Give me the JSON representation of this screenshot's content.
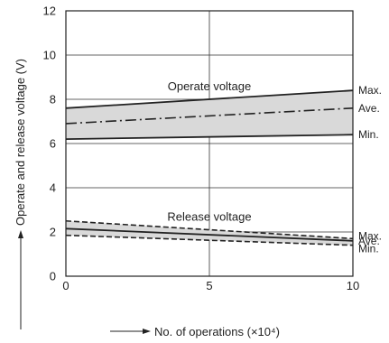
{
  "chart_data": {
    "type": "area",
    "xlabel": "No. of operations (×10⁴)",
    "ylabel": "Operate and release voltage (V)",
    "xlim": [
      0,
      10
    ],
    "ylim": [
      0,
      12
    ],
    "x_ticks": [
      "0",
      "5",
      "10"
    ],
    "y_ticks": [
      "0",
      "2",
      "4",
      "6",
      "8",
      "10",
      "12"
    ],
    "grid": true,
    "band_fill": "#d9d9d9",
    "line_color": "#222222",
    "groups": [
      {
        "label": "Operate voltage",
        "series": [
          {
            "name": "Max.",
            "style": "solid",
            "x": [
              0,
              10
            ],
            "y": [
              7.6,
              8.4
            ]
          },
          {
            "name": "Ave.",
            "style": "dash-dot",
            "x": [
              0,
              10
            ],
            "y": [
              6.9,
              7.6
            ]
          },
          {
            "name": "Min.",
            "style": "solid",
            "x": [
              0,
              10
            ],
            "y": [
              6.2,
              6.4
            ]
          }
        ]
      },
      {
        "label": "Release voltage",
        "series": [
          {
            "name": "Max.",
            "style": "dashed",
            "x": [
              0,
              10
            ],
            "y": [
              2.5,
              1.7
            ]
          },
          {
            "name": "Ave.",
            "style": "solid",
            "x": [
              0,
              10
            ],
            "y": [
              2.15,
              1.6
            ]
          },
          {
            "name": "Min.",
            "style": "dashed",
            "x": [
              0,
              10
            ],
            "y": [
              1.85,
              1.4
            ]
          }
        ]
      }
    ]
  }
}
